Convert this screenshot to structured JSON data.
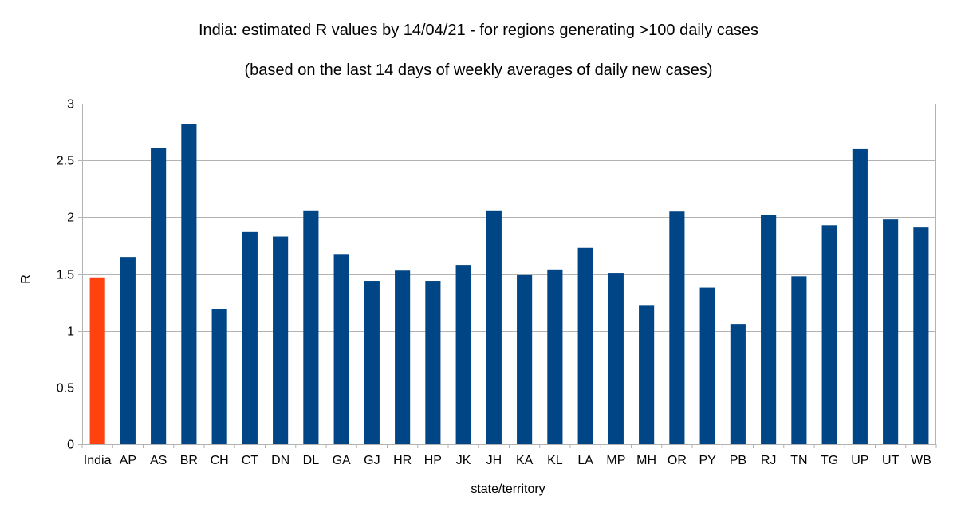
{
  "chart_data": {
    "type": "bar",
    "title": "India: estimated R values by 14/04/21 - for regions generating >100 daily cases",
    "subtitle": "(based on the last 14 days of weekly averages of daily new cases)",
    "xlabel": "state/territory",
    "ylabel": "R",
    "ylim": [
      0,
      3
    ],
    "yticks": [
      0,
      0.5,
      1,
      1.5,
      2,
      2.5,
      3
    ],
    "ytick_labels": [
      "0",
      "0.5",
      "1",
      "1.5",
      "2",
      "2.5",
      "3"
    ],
    "grid": true,
    "categories": [
      "India",
      "AP",
      "AS",
      "BR",
      "CH",
      "CT",
      "DN",
      "DL",
      "GA",
      "GJ",
      "HR",
      "HP",
      "JK",
      "JH",
      "KA",
      "KL",
      "LA",
      "MP",
      "MH",
      "OR",
      "PY",
      "PB",
      "RJ",
      "TN",
      "TG",
      "UP",
      "UT",
      "WB"
    ],
    "values": [
      1.47,
      1.65,
      2.61,
      2.82,
      1.19,
      1.87,
      1.83,
      2.06,
      1.67,
      1.44,
      1.53,
      1.44,
      1.58,
      2.06,
      1.49,
      1.54,
      1.73,
      1.51,
      1.22,
      2.05,
      1.38,
      1.06,
      2.02,
      1.48,
      1.93,
      2.6,
      1.98,
      1.91
    ],
    "colors": {
      "highlight": "#ff420e",
      "default": "#004586",
      "grid": "#b3b3b3",
      "axis": "#b3b3b3"
    },
    "highlight_categories": [
      "India"
    ]
  }
}
